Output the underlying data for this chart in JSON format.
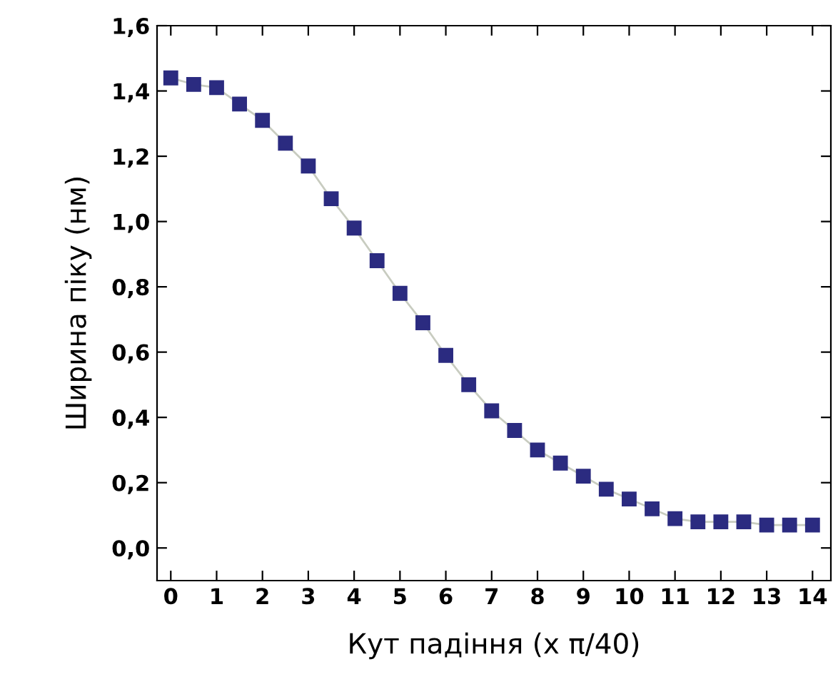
{
  "chart_data": {
    "type": "line",
    "xlabel": "Кут падіння (x π/40)",
    "ylabel": "Ширина піку (нм)",
    "x": [
      0,
      0.5,
      1,
      1.5,
      2,
      2.5,
      3,
      3.5,
      4,
      4.5,
      5,
      5.5,
      6,
      6.5,
      7,
      7.5,
      8,
      8.5,
      9,
      9.5,
      10,
      10.5,
      11,
      11.5,
      12,
      12.5,
      13,
      13.5,
      14
    ],
    "series": [
      {
        "color": "#2b2b80",
        "values": [
          1.44,
          1.42,
          1.41,
          1.36,
          1.31,
          1.24,
          1.17,
          1.07,
          0.98,
          0.88,
          0.78,
          0.69,
          0.59,
          0.5,
          0.42,
          0.36,
          0.3,
          0.26,
          0.22,
          0.18,
          0.15,
          0.12,
          0.09,
          0.08,
          0.08,
          0.08,
          0.07,
          0.07,
          0.07
        ]
      }
    ],
    "xlim": [
      -0.3,
      14.4
    ],
    "ylim": [
      -0.1,
      1.6
    ],
    "xticks": [
      0,
      1,
      2,
      3,
      4,
      5,
      6,
      7,
      8,
      9,
      10,
      11,
      12,
      13,
      14
    ],
    "yticks": [
      {
        "value": 0,
        "label": "0,0"
      },
      {
        "value": 0.2,
        "label": "0,2"
      },
      {
        "value": 0.4,
        "label": "0,4"
      },
      {
        "value": 0.6,
        "label": "0,6"
      },
      {
        "value": 0.8,
        "label": "0,8"
      },
      {
        "value": 1.0,
        "label": "1,0"
      },
      {
        "value": 1.2,
        "label": "1,2"
      },
      {
        "value": 1.4,
        "label": "1,4"
      },
      {
        "value": 1.6,
        "label": "1,6"
      }
    ],
    "marker": "square",
    "line_style": "solid",
    "grid": false,
    "legend": false
  }
}
